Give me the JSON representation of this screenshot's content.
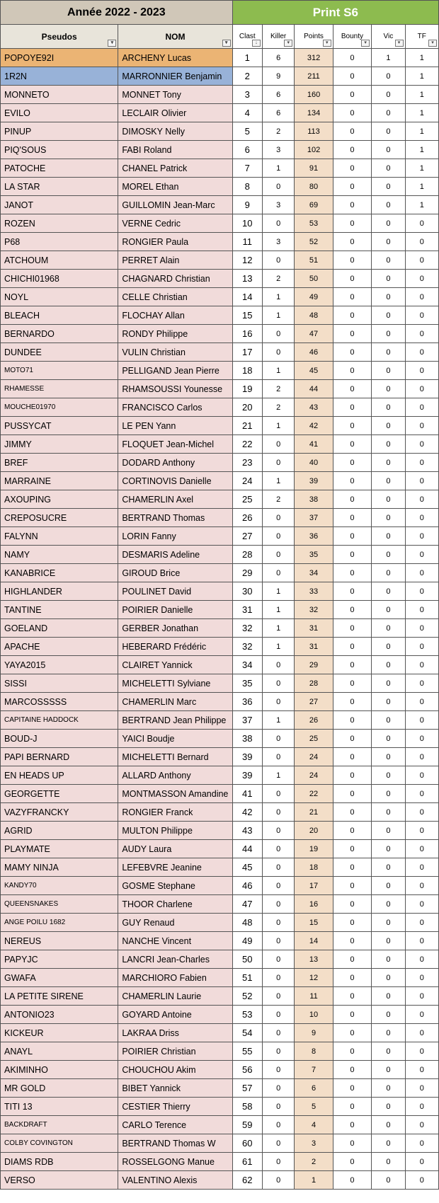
{
  "header": {
    "year_label": "Année 2022 - 2023",
    "print_label": "Print S6"
  },
  "columns": {
    "pseudo": "Pseudos",
    "nom": "NOM",
    "clast": "Clast",
    "killer": "Killer",
    "points": "Points",
    "bounty": "Bounty",
    "vic": "Vic",
    "tf": "TF"
  },
  "rows": [
    {
      "pseudo": "POPOYE92I",
      "nom": "ARCHENY Lucas",
      "clast": 1,
      "killer": 6,
      "points": 312,
      "bounty": 0,
      "vic": 1,
      "tf": 1,
      "hl": "orange"
    },
    {
      "pseudo": "1R2N",
      "nom": "MARRONNIER Benjamin",
      "clast": 2,
      "killer": 9,
      "points": 211,
      "bounty": 0,
      "vic": 0,
      "tf": 1,
      "hl": "blue"
    },
    {
      "pseudo": "MONNETO",
      "nom": "MONNET Tony",
      "clast": 3,
      "killer": 6,
      "points": 160,
      "bounty": 0,
      "vic": 0,
      "tf": 1
    },
    {
      "pseudo": "EVILO",
      "nom": "LECLAIR Olivier",
      "clast": 4,
      "killer": 6,
      "points": 134,
      "bounty": 0,
      "vic": 0,
      "tf": 1
    },
    {
      "pseudo": "PINUP",
      "nom": "DIMOSKY Nelly",
      "clast": 5,
      "killer": 2,
      "points": 113,
      "bounty": 0,
      "vic": 0,
      "tf": 1
    },
    {
      "pseudo": "PIQ'SOUS",
      "nom": "FABI Roland",
      "clast": 6,
      "killer": 3,
      "points": 102,
      "bounty": 0,
      "vic": 0,
      "tf": 1
    },
    {
      "pseudo": "PATOCHE",
      "nom": "CHANEL Patrick",
      "clast": 7,
      "killer": 1,
      "points": 91,
      "bounty": 0,
      "vic": 0,
      "tf": 1
    },
    {
      "pseudo": "LA STAR",
      "nom": "MOREL Ethan",
      "clast": 8,
      "killer": 0,
      "points": 80,
      "bounty": 0,
      "vic": 0,
      "tf": 1
    },
    {
      "pseudo": "JANOT",
      "nom": "GUILLOMIN Jean-Marc",
      "clast": 9,
      "killer": 3,
      "points": 69,
      "bounty": 0,
      "vic": 0,
      "tf": 1
    },
    {
      "pseudo": "ROZEN",
      "nom": "VERNE Cedric",
      "clast": 10,
      "killer": 0,
      "points": 53,
      "bounty": 0,
      "vic": 0,
      "tf": 0
    },
    {
      "pseudo": "P68",
      "nom": "RONGIER Paula",
      "clast": 11,
      "killer": 3,
      "points": 52,
      "bounty": 0,
      "vic": 0,
      "tf": 0
    },
    {
      "pseudo": "ATCHOUM",
      "nom": "PERRET Alain",
      "clast": 12,
      "killer": 0,
      "points": 51,
      "bounty": 0,
      "vic": 0,
      "tf": 0
    },
    {
      "pseudo": "CHICHI01968",
      "nom": "CHAGNARD Christian",
      "clast": 13,
      "killer": 2,
      "points": 50,
      "bounty": 0,
      "vic": 0,
      "tf": 0
    },
    {
      "pseudo": "NOYL",
      "nom": "CELLE Christian",
      "clast": 14,
      "killer": 1,
      "points": 49,
      "bounty": 0,
      "vic": 0,
      "tf": 0
    },
    {
      "pseudo": "BLEACH",
      "nom": "FLOCHAY Allan",
      "clast": 15,
      "killer": 1,
      "points": 48,
      "bounty": 0,
      "vic": 0,
      "tf": 0
    },
    {
      "pseudo": "BERNARDO",
      "nom": "RONDY Philippe",
      "clast": 16,
      "killer": 0,
      "points": 47,
      "bounty": 0,
      "vic": 0,
      "tf": 0
    },
    {
      "pseudo": "DUNDEE",
      "nom": "VULIN Christian",
      "clast": 17,
      "killer": 0,
      "points": 46,
      "bounty": 0,
      "vic": 0,
      "tf": 0
    },
    {
      "pseudo": "MOTO71",
      "nom": "PELLIGAND Jean Pierre",
      "clast": 18,
      "killer": 1,
      "points": 45,
      "bounty": 0,
      "vic": 0,
      "tf": 0,
      "small": true
    },
    {
      "pseudo": "RHAMESSE",
      "nom": "RHAMSOUSSI Younesse",
      "clast": 19,
      "killer": 2,
      "points": 44,
      "bounty": 0,
      "vic": 0,
      "tf": 0,
      "small": true
    },
    {
      "pseudo": "MOUCHE01970",
      "nom": "FRANCISCO Carlos",
      "clast": 20,
      "killer": 2,
      "points": 43,
      "bounty": 0,
      "vic": 0,
      "tf": 0,
      "small": true
    },
    {
      "pseudo": "PUSSYCAT",
      "nom": "LE PEN Yann",
      "clast": 21,
      "killer": 1,
      "points": 42,
      "bounty": 0,
      "vic": 0,
      "tf": 0
    },
    {
      "pseudo": "JIMMY",
      "nom": "FLOQUET Jean-Michel",
      "clast": 22,
      "killer": 0,
      "points": 41,
      "bounty": 0,
      "vic": 0,
      "tf": 0
    },
    {
      "pseudo": "BREF",
      "nom": "DODARD Anthony",
      "clast": 23,
      "killer": 0,
      "points": 40,
      "bounty": 0,
      "vic": 0,
      "tf": 0
    },
    {
      "pseudo": "MARRAINE",
      "nom": "CORTINOVIS Danielle",
      "clast": 24,
      "killer": 1,
      "points": 39,
      "bounty": 0,
      "vic": 0,
      "tf": 0
    },
    {
      "pseudo": "AXOUPING",
      "nom": "CHAMERLIN Axel",
      "clast": 25,
      "killer": 2,
      "points": 38,
      "bounty": 0,
      "vic": 0,
      "tf": 0
    },
    {
      "pseudo": "CREPOSUCRE",
      "nom": "BERTRAND Thomas",
      "clast": 26,
      "killer": 0,
      "points": 37,
      "bounty": 0,
      "vic": 0,
      "tf": 0
    },
    {
      "pseudo": "FALYNN",
      "nom": "LORIN Fanny",
      "clast": 27,
      "killer": 0,
      "points": 36,
      "bounty": 0,
      "vic": 0,
      "tf": 0
    },
    {
      "pseudo": "NAMY",
      "nom": "DESMARIS Adeline",
      "clast": 28,
      "killer": 0,
      "points": 35,
      "bounty": 0,
      "vic": 0,
      "tf": 0
    },
    {
      "pseudo": "KANABRICE",
      "nom": "GIROUD Brice",
      "clast": 29,
      "killer": 0,
      "points": 34,
      "bounty": 0,
      "vic": 0,
      "tf": 0
    },
    {
      "pseudo": "HIGHLANDER",
      "nom": "POULINET David",
      "clast": 30,
      "killer": 1,
      "points": 33,
      "bounty": 0,
      "vic": 0,
      "tf": 0
    },
    {
      "pseudo": "TANTINE",
      "nom": "POIRIER Danielle",
      "clast": 31,
      "killer": 1,
      "points": 32,
      "bounty": 0,
      "vic": 0,
      "tf": 0
    },
    {
      "pseudo": "GOELAND",
      "nom": "GERBER Jonathan",
      "clast": 32,
      "killer": 1,
      "points": 31,
      "bounty": 0,
      "vic": 0,
      "tf": 0
    },
    {
      "pseudo": "APACHE",
      "nom": "HEBERARD Frédéric",
      "clast": 32,
      "killer": 1,
      "points": 31,
      "bounty": 0,
      "vic": 0,
      "tf": 0
    },
    {
      "pseudo": "YAYA2015",
      "nom": "CLAIRET Yannick",
      "clast": 34,
      "killer": 0,
      "points": 29,
      "bounty": 0,
      "vic": 0,
      "tf": 0
    },
    {
      "pseudo": "SISSI",
      "nom": "MICHELETTI Sylviane",
      "clast": 35,
      "killer": 0,
      "points": 28,
      "bounty": 0,
      "vic": 0,
      "tf": 0
    },
    {
      "pseudo": "MARCOSSSSS",
      "nom": "CHAMERLIN Marc",
      "clast": 36,
      "killer": 0,
      "points": 27,
      "bounty": 0,
      "vic": 0,
      "tf": 0
    },
    {
      "pseudo": "CAPITAINE HADDOCK",
      "nom": "BERTRAND Jean Philippe",
      "clast": 37,
      "killer": 1,
      "points": 26,
      "bounty": 0,
      "vic": 0,
      "tf": 0,
      "small": true
    },
    {
      "pseudo": "BOUD-J",
      "nom": "YAICI Boudje",
      "clast": 38,
      "killer": 0,
      "points": 25,
      "bounty": 0,
      "vic": 0,
      "tf": 0
    },
    {
      "pseudo": "PAPI BERNARD",
      "nom": "MICHELETTI Bernard",
      "clast": 39,
      "killer": 0,
      "points": 24,
      "bounty": 0,
      "vic": 0,
      "tf": 0
    },
    {
      "pseudo": "EN HEADS UP",
      "nom": "ALLARD Anthony",
      "clast": 39,
      "killer": 1,
      "points": 24,
      "bounty": 0,
      "vic": 0,
      "tf": 0
    },
    {
      "pseudo": "GEORGETTE",
      "nom": "MONTMASSON Amandine",
      "clast": 41,
      "killer": 0,
      "points": 22,
      "bounty": 0,
      "vic": 0,
      "tf": 0
    },
    {
      "pseudo": "VAZYFRANCKY",
      "nom": "RONGIER Franck",
      "clast": 42,
      "killer": 0,
      "points": 21,
      "bounty": 0,
      "vic": 0,
      "tf": 0
    },
    {
      "pseudo": "AGRID",
      "nom": "MULTON Philippe",
      "clast": 43,
      "killer": 0,
      "points": 20,
      "bounty": 0,
      "vic": 0,
      "tf": 0
    },
    {
      "pseudo": "PLAYMATE",
      "nom": "AUDY Laura",
      "clast": 44,
      "killer": 0,
      "points": 19,
      "bounty": 0,
      "vic": 0,
      "tf": 0
    },
    {
      "pseudo": "MAMY NINJA",
      "nom": "LEFEBVRE Jeanine",
      "clast": 45,
      "killer": 0,
      "points": 18,
      "bounty": 0,
      "vic": 0,
      "tf": 0
    },
    {
      "pseudo": "KANDY70",
      "nom": "GOSME Stephane",
      "clast": 46,
      "killer": 0,
      "points": 17,
      "bounty": 0,
      "vic": 0,
      "tf": 0,
      "small": true
    },
    {
      "pseudo": "QUEENSNAKES",
      "nom": "THOOR Charlene",
      "clast": 47,
      "killer": 0,
      "points": 16,
      "bounty": 0,
      "vic": 0,
      "tf": 0,
      "small": true
    },
    {
      "pseudo": "ANGE POILU 1682",
      "nom": "GUY Renaud",
      "clast": 48,
      "killer": 0,
      "points": 15,
      "bounty": 0,
      "vic": 0,
      "tf": 0,
      "small": true
    },
    {
      "pseudo": "NEREUS",
      "nom": "NANCHE Vincent",
      "clast": 49,
      "killer": 0,
      "points": 14,
      "bounty": 0,
      "vic": 0,
      "tf": 0
    },
    {
      "pseudo": "PAPYJC",
      "nom": "LANCRI Jean-Charles",
      "clast": 50,
      "killer": 0,
      "points": 13,
      "bounty": 0,
      "vic": 0,
      "tf": 0
    },
    {
      "pseudo": "GWAFA",
      "nom": "MARCHIORO Fabien",
      "clast": 51,
      "killer": 0,
      "points": 12,
      "bounty": 0,
      "vic": 0,
      "tf": 0
    },
    {
      "pseudo": "LA PETITE SIRENE",
      "nom": "CHAMERLIN Laurie",
      "clast": 52,
      "killer": 0,
      "points": 11,
      "bounty": 0,
      "vic": 0,
      "tf": 0
    },
    {
      "pseudo": "ANTONIO23",
      "nom": "GOYARD Antoine",
      "clast": 53,
      "killer": 0,
      "points": 10,
      "bounty": 0,
      "vic": 0,
      "tf": 0
    },
    {
      "pseudo": "KICKEUR",
      "nom": "LAKRAA Driss",
      "clast": 54,
      "killer": 0,
      "points": 9,
      "bounty": 0,
      "vic": 0,
      "tf": 0
    },
    {
      "pseudo": "ANAYL",
      "nom": "POIRIER Christian",
      "clast": 55,
      "killer": 0,
      "points": 8,
      "bounty": 0,
      "vic": 0,
      "tf": 0
    },
    {
      "pseudo": "AKIMINHO",
      "nom": "CHOUCHOU Akim",
      "clast": 56,
      "killer": 0,
      "points": 7,
      "bounty": 0,
      "vic": 0,
      "tf": 0
    },
    {
      "pseudo": "MR GOLD",
      "nom": "BIBET Yannick",
      "clast": 57,
      "killer": 0,
      "points": 6,
      "bounty": 0,
      "vic": 0,
      "tf": 0
    },
    {
      "pseudo": "TITI 13",
      "nom": "CESTIER Thierry",
      "clast": 58,
      "killer": 0,
      "points": 5,
      "bounty": 0,
      "vic": 0,
      "tf": 0
    },
    {
      "pseudo": "BACKDRAFT",
      "nom": "CARLO Terence",
      "clast": 59,
      "killer": 0,
      "points": 4,
      "bounty": 0,
      "vic": 0,
      "tf": 0,
      "small": true
    },
    {
      "pseudo": "COLBY COVINGTON",
      "nom": "BERTRAND Thomas W",
      "clast": 60,
      "killer": 0,
      "points": 3,
      "bounty": 0,
      "vic": 0,
      "tf": 0,
      "small": true
    },
    {
      "pseudo": "DIAMS RDB",
      "nom": "ROSSELGONG Manue",
      "clast": 61,
      "killer": 0,
      "points": 2,
      "bounty": 0,
      "vic": 0,
      "tf": 0
    },
    {
      "pseudo": "VERSO",
      "nom": "VALENTINO Alexis",
      "clast": 62,
      "killer": 0,
      "points": 1,
      "bounty": 0,
      "vic": 0,
      "tf": 0
    }
  ],
  "colors": {
    "header_beige": "#d0c7b8",
    "header_green": "#8dbb4f",
    "subheader_beige": "#e8e4da",
    "row_pink": "#f1dbda",
    "row_orange": "#ebb474",
    "row_blue": "#98b2d8",
    "points_bg": "#f3dec8"
  }
}
